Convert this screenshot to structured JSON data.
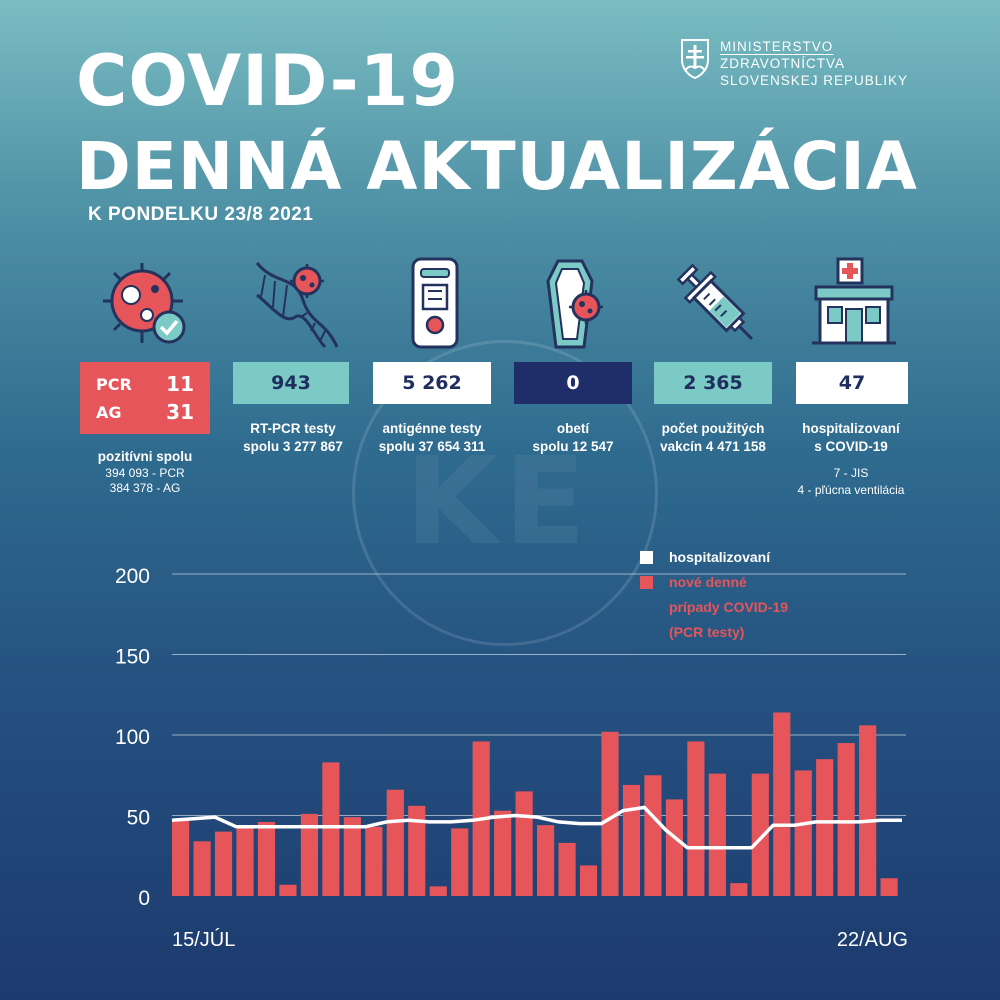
{
  "header": {
    "title_line1": "COVID-19",
    "title_line2": "DENNÁ AKTUALIZÁCIA",
    "subtitle": "K PONDELKU 23/8 2021"
  },
  "ministry": {
    "line1": "MINISTERSTVO",
    "line2": "ZDRAVOTNÍCTVA",
    "line3": "SLOVENSKEJ REPUBLIKY"
  },
  "watermark": "KE",
  "stats": {
    "positive": {
      "pcr_label": "PCR",
      "pcr_value": "11",
      "ag_label": "AG",
      "ag_value": "31",
      "title": "pozitívni spolu",
      "sub1": "394 093 - PCR",
      "sub2": "384 378 - AG"
    },
    "rtpcr": {
      "value": "943",
      "line1": "RT-PCR testy",
      "line2": "spolu  3 277 867"
    },
    "antigen": {
      "value": "5 262",
      "line1": "antigénne testy",
      "line2": "spolu  37 654 311"
    },
    "deaths": {
      "value": "0",
      "line1": "obetí",
      "line2": "spolu 12 547"
    },
    "vaccines": {
      "value": "2 365",
      "line1": "počet použitých",
      "line2": "vakcín   4 471 158"
    },
    "hospital": {
      "value": "47",
      "line1": "hospitalizovaní",
      "line2": "s COVID-19",
      "sub1": "7  - JIS",
      "sub2": "4  - pľúcna ventilácia"
    }
  },
  "legend": {
    "hospitalized": "hospitalizovaní",
    "new_cases_1": "nové denné",
    "new_cases_2": "prípady COVID-19",
    "new_cases_3": "(PCR testy)"
  },
  "colors": {
    "bar": "#e5555a",
    "line": "#ffffff",
    "gridline": "#b9c6d6"
  },
  "chart_data": {
    "type": "bar",
    "title": "",
    "xlabel": "",
    "ylabel": "",
    "x_start_label": "15/JÚL",
    "x_end_label": "22/AUG",
    "ylim": [
      0,
      200
    ],
    "yticks": [
      0,
      50,
      100,
      150,
      200
    ],
    "series": [
      {
        "name": "nové denné prípady COVID-19 (PCR testy)",
        "type": "bar",
        "values": [
          47,
          34,
          40,
          43,
          46,
          7,
          51,
          83,
          49,
          43,
          66,
          56,
          6,
          42,
          96,
          53,
          65,
          44,
          33,
          19,
          102,
          69,
          75,
          60,
          96,
          76,
          8,
          76,
          114,
          78,
          85,
          95,
          106,
          11
        ]
      },
      {
        "name": "hospitalizovaní",
        "type": "line",
        "values": [
          47,
          48,
          49,
          43,
          43,
          43,
          43,
          43,
          43,
          43,
          46,
          47,
          46,
          46,
          47,
          49,
          50,
          49,
          46,
          45,
          45,
          53,
          55,
          41,
          30,
          30,
          30,
          30,
          44,
          44,
          46,
          46,
          46,
          47,
          47
        ]
      }
    ]
  }
}
